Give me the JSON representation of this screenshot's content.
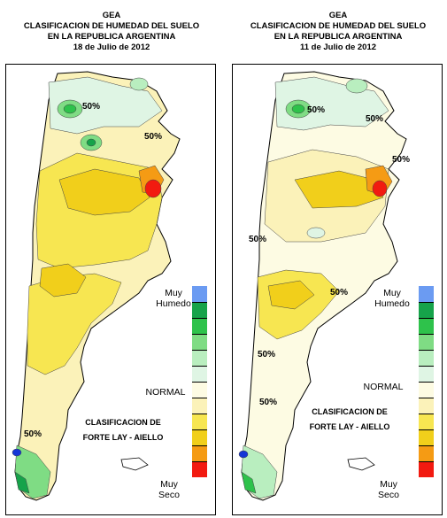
{
  "panels": [
    {
      "org": "GEA",
      "title_line1": "CLASIFICACION DE HUMEDAD DEL SUELO",
      "title_line2": "EN LA REPUBLICA ARGENTINA",
      "date": "18 de Julio de 2012",
      "contour_labels": [
        "50%",
        "50%",
        "50%"
      ],
      "legend_top": "Muy",
      "legend_top2": "Humedo",
      "legend_mid": "NORMAL",
      "legend_bottom": "Muy",
      "legend_bottom2": "Seco",
      "classification_line1": "CLASIFICACION DE",
      "classification_line2": "FORTE LAY - AIELLO"
    },
    {
      "org": "GEA",
      "title_line1": "CLASIFICACION DE HUMEDAD DEL SUELO",
      "title_line2": "EN LA REPUBLICA ARGENTINA",
      "date": "11 de Julio de 2012",
      "contour_labels": [
        "50%",
        "50%",
        "50%",
        "50%",
        "50%",
        "50%",
        "50%"
      ],
      "legend_top": "Muy",
      "legend_top2": "Humedo",
      "legend_mid": "NORMAL",
      "legend_bottom": "Muy",
      "legend_bottom2": "Seco",
      "classification_line1": "CLASIFICACION DE",
      "classification_line2": "FORTE LAY - AIELLO"
    }
  ],
  "legend_colors": [
    "#6b9bf2",
    "#16a34a",
    "#2ec24b",
    "#7fdc84",
    "#b9eebf",
    "#dff5e4",
    "#fdfbe3",
    "#fbf2b9",
    "#f7e651",
    "#f1cf1b",
    "#f59b14",
    "#f21a10"
  ]
}
